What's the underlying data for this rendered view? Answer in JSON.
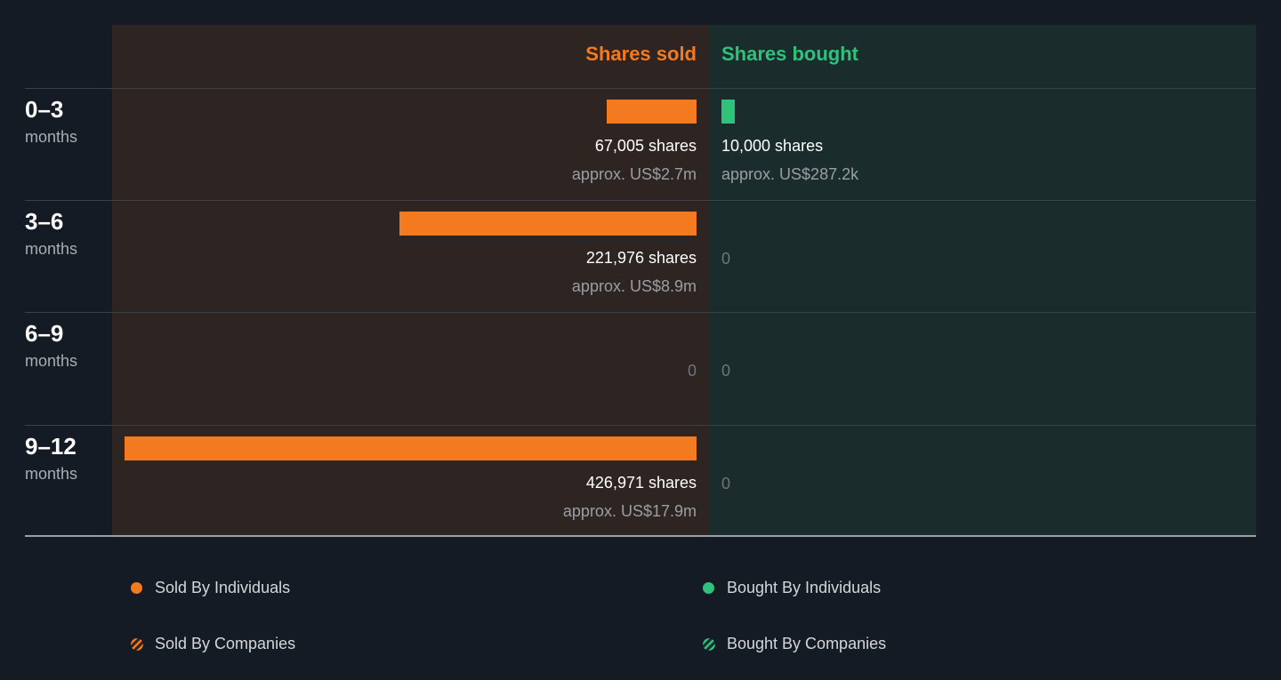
{
  "header": {
    "sold_label": "Shares sold",
    "bought_label": "Shares bought"
  },
  "colors": {
    "sold": "#f47a1f",
    "bought": "#2fc27c",
    "sold_bg": "#2e2421",
    "bought_bg": "#1b2c2c",
    "page_bg": "#151b24"
  },
  "legend": {
    "sold_individuals": "Sold By Individuals",
    "sold_companies": "Sold By Companies",
    "bought_individuals": "Bought By Individuals",
    "bought_companies": "Bought By Companies"
  },
  "chart_data": {
    "type": "bar",
    "categories": [
      "0–3",
      "3–6",
      "6–9",
      "9–12"
    ],
    "category_unit": "months",
    "series": [
      {
        "name": "Shares sold",
        "values": [
          67005,
          221976,
          0,
          426971
        ],
        "labels": [
          "67,005 shares",
          "221,976 shares",
          "0",
          "426,971 shares"
        ],
        "approx": [
          "approx. US$2.7m",
          "approx. US$8.9m",
          "",
          "approx. US$17.9m"
        ]
      },
      {
        "name": "Shares bought",
        "values": [
          10000,
          0,
          0,
          0
        ],
        "labels": [
          "10,000 shares",
          "0",
          "0",
          "0"
        ],
        "approx": [
          "approx. US$287.2k",
          "",
          "",
          ""
        ]
      }
    ]
  }
}
